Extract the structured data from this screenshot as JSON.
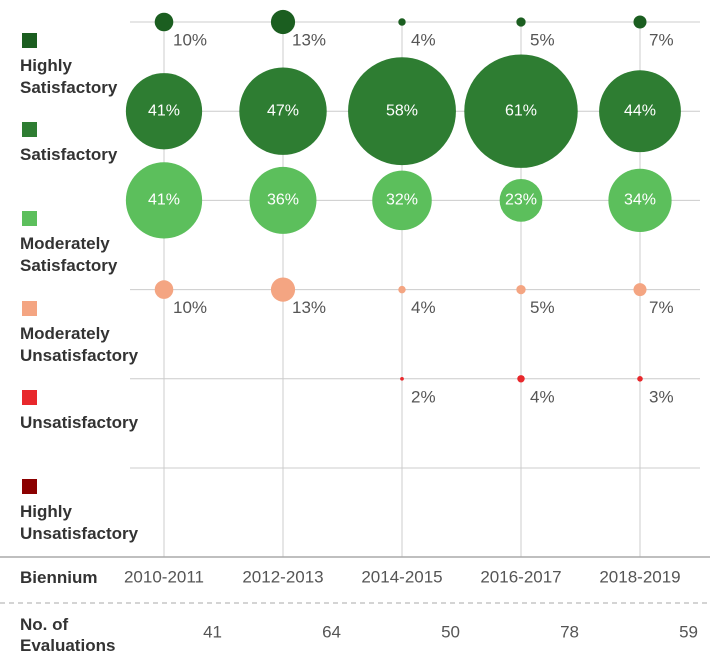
{
  "chart_data": {
    "type": "bubble",
    "x_label": "Biennium",
    "categories": [
      "2010-2011",
      "2012-2013",
      "2014-2015",
      "2016-2017",
      "2018-2019"
    ],
    "series": [
      {
        "name": "Highly Satisfactory",
        "color": "#1b5e20",
        "values": [
          10,
          13,
          4,
          5,
          7
        ],
        "value_labels": [
          "10%",
          "13%",
          "4%",
          "5%",
          "7%"
        ]
      },
      {
        "name": "Satisfactory",
        "color": "#2e7d32",
        "values": [
          41,
          47,
          58,
          61,
          44
        ],
        "value_labels": [
          "41%",
          "47%",
          "58%",
          "61%",
          "44%"
        ]
      },
      {
        "name": "Moderately Satisfactory",
        "color": "#5cbf5c",
        "values": [
          41,
          36,
          32,
          23,
          34
        ],
        "value_labels": [
          "41%",
          "36%",
          "32%",
          "23%",
          "34%"
        ]
      },
      {
        "name": "Moderately Unsatisfactory",
        "color": "#f4a582",
        "values": [
          10,
          13,
          4,
          5,
          7
        ],
        "value_labels": [
          "10%",
          "13%",
          "4%",
          "5%",
          "7%"
        ]
      },
      {
        "name": "Unsatisfactory",
        "color": "#e8282c",
        "values": [
          null,
          null,
          2,
          4,
          3
        ],
        "value_labels": [
          null,
          null,
          "2%",
          "4%",
          "3%"
        ]
      },
      {
        "name": "Highly Unsatisfactory",
        "color": "#8b0000",
        "values": [
          null,
          null,
          null,
          null,
          null
        ]
      }
    ],
    "evaluations": {
      "label": "No. of Evaluations",
      "values": [
        41,
        64,
        50,
        78,
        59
      ]
    }
  }
}
